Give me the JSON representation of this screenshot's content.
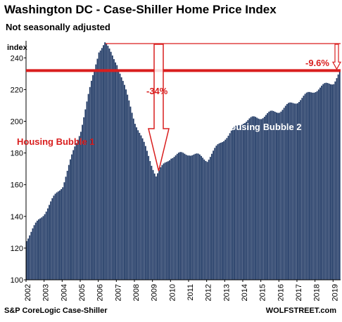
{
  "header": {
    "title": "Washington DC - Case-Shiller Home Price Index",
    "subtitle": "Not seasonally adjusted"
  },
  "footer": {
    "source": "S&P CoreLogic Case-Shiller",
    "brand": "WOLFSTREET.com"
  },
  "chart_data": {
    "type": "bar",
    "title": "Washington DC - Case-Shiller Home Price Index",
    "subtitle": "Not seasonally adjusted",
    "ylabel": "index",
    "xlabel": "",
    "ylim": [
      100,
      249
    ],
    "yticks": [
      100,
      120,
      140,
      160,
      180,
      200,
      220,
      240
    ],
    "xticks": [
      "2002",
      "2003",
      "2004",
      "2005",
      "2006",
      "2007",
      "2008",
      "2009",
      "2010",
      "2011",
      "2012",
      "2013",
      "2014",
      "2015",
      "2016",
      "2017",
      "2018",
      "2019"
    ],
    "x_start": "2002-01",
    "frequency": "monthly",
    "grid": false,
    "bar_color": "#1f3864",
    "annotation_color": "#d91e1e",
    "key_points": [
      {
        "date": "2002-01",
        "value": 126
      },
      {
        "date": "2003-01",
        "value": 143
      },
      {
        "date": "2004-01",
        "value": 160
      },
      {
        "date": "2005-01",
        "value": 195
      },
      {
        "date": "2006-01",
        "value": 245
      },
      {
        "date": "2006-05",
        "value": 249
      },
      {
        "date": "2007-01",
        "value": 237
      },
      {
        "date": "2008-01",
        "value": 200
      },
      {
        "date": "2009-03",
        "value": 166
      },
      {
        "date": "2010-01",
        "value": 178
      },
      {
        "date": "2011-01",
        "value": 180
      },
      {
        "date": "2012-01",
        "value": 176
      },
      {
        "date": "2013-01",
        "value": 190
      },
      {
        "date": "2014-01",
        "value": 200
      },
      {
        "date": "2015-01",
        "value": 203
      },
      {
        "date": "2016-01",
        "value": 207
      },
      {
        "date": "2017-01",
        "value": 213
      },
      {
        "date": "2018-01",
        "value": 220
      },
      {
        "date": "2019-01",
        "value": 225
      },
      {
        "date": "2019-05",
        "value": 231
      }
    ],
    "reference_lines": [
      {
        "label": "",
        "value": 232,
        "style": "thick"
      },
      {
        "label": "",
        "value": 249,
        "style": "thin"
      }
    ],
    "annotations": [
      {
        "text": "-34%",
        "color": "#d91e1e"
      },
      {
        "text": "-9.6%",
        "color": "#d91e1e"
      },
      {
        "text": "Housing Bubble 1",
        "color": "#d91e1e"
      },
      {
        "text": "Housing Bubble 2",
        "color": "#ffffff"
      }
    ]
  }
}
